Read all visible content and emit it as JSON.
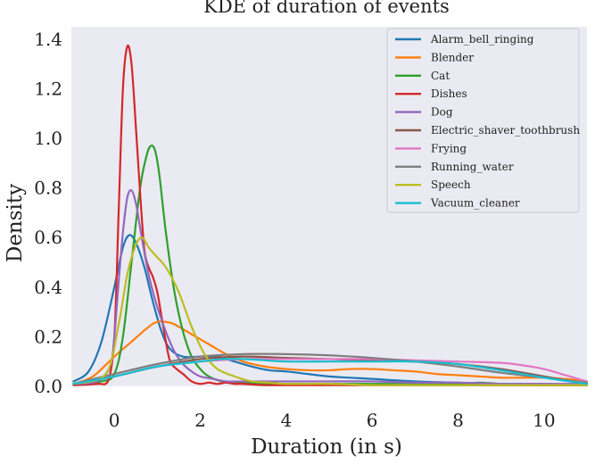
{
  "chart_data": {
    "type": "line",
    "title": "KDE of duration of events",
    "xlabel": "Duration (in s)",
    "ylabel": "Density",
    "xlim": [
      -1,
      11
    ],
    "ylim": [
      0,
      1.45
    ],
    "xticks": [
      0,
      2,
      4,
      6,
      8,
      10
    ],
    "xtick_labels": [
      "0",
      "2",
      "4",
      "6",
      "8",
      "10"
    ],
    "yticks": [
      0.0,
      0.2,
      0.4,
      0.6,
      0.8,
      1.0,
      1.2,
      1.4
    ],
    "ytick_labels": [
      "0.0",
      "0.2",
      "0.4",
      "0.6",
      "0.8",
      "1.0",
      "1.2",
      "1.4"
    ],
    "legend_position": "top-right",
    "background": "#eaeaf2",
    "series": [
      {
        "name": "Alarm_bell_ringing",
        "color": "#1f77b4",
        "x": [
          -0.95,
          -0.6,
          -0.3,
          0.0,
          0.2,
          0.35,
          0.5,
          0.7,
          0.9,
          1.1,
          1.3,
          1.6,
          2.0,
          2.4,
          2.8,
          3.2,
          3.6,
          4.0,
          4.5,
          5.0,
          6.0,
          7.0,
          8.0,
          9.0,
          10.0,
          11.0
        ],
        "y": [
          0.02,
          0.06,
          0.18,
          0.4,
          0.56,
          0.61,
          0.58,
          0.48,
          0.34,
          0.22,
          0.15,
          0.12,
          0.12,
          0.12,
          0.1,
          0.08,
          0.065,
          0.06,
          0.05,
          0.04,
          0.03,
          0.02,
          0.015,
          0.01,
          0.01,
          0.005
        ]
      },
      {
        "name": "Blender",
        "color": "#ff7f0e",
        "x": [
          -0.95,
          -0.5,
          0.0,
          0.4,
          0.8,
          1.0,
          1.2,
          1.4,
          1.8,
          2.2,
          2.6,
          3.0,
          3.5,
          4.0,
          4.5,
          5.0,
          5.5,
          6.0,
          6.5,
          7.0,
          7.5,
          8.0,
          8.5,
          9.0,
          9.5,
          10.0,
          10.5,
          11.0
        ],
        "y": [
          0.01,
          0.04,
          0.12,
          0.18,
          0.24,
          0.26,
          0.26,
          0.25,
          0.21,
          0.17,
          0.13,
          0.1,
          0.08,
          0.07,
          0.065,
          0.065,
          0.07,
          0.07,
          0.065,
          0.06,
          0.05,
          0.045,
          0.04,
          0.035,
          0.035,
          0.035,
          0.03,
          0.02
        ]
      },
      {
        "name": "Cat",
        "color": "#2ca02c",
        "x": [
          -0.95,
          -0.3,
          0.0,
          0.2,
          0.4,
          0.6,
          0.75,
          0.85,
          0.95,
          1.05,
          1.2,
          1.4,
          1.6,
          1.8,
          2.0,
          2.2,
          2.5,
          2.8,
          3.2,
          3.6,
          4.0,
          5.0,
          6.0,
          7.0,
          8.0,
          8.5,
          9.0,
          10.0,
          11.0
        ],
        "y": [
          0.01,
          0.02,
          0.05,
          0.2,
          0.5,
          0.8,
          0.93,
          0.97,
          0.95,
          0.85,
          0.62,
          0.38,
          0.22,
          0.12,
          0.07,
          0.04,
          0.02,
          0.015,
          0.015,
          0.01,
          0.01,
          0.01,
          0.01,
          0.01,
          0.01,
          0.015,
          0.01,
          0.005,
          0.005
        ]
      },
      {
        "name": "Dishes",
        "color": "#d62728",
        "x": [
          -0.95,
          -0.4,
          -0.15,
          0.0,
          0.1,
          0.2,
          0.3,
          0.4,
          0.5,
          0.6,
          0.7,
          0.8,
          0.9,
          1.0,
          1.1,
          1.2,
          1.3,
          1.45,
          1.6,
          1.8,
          2.0,
          2.2,
          2.4,
          2.6,
          2.8,
          3.0,
          3.5,
          4.0,
          5.0,
          6.0,
          7.0,
          8.0,
          9.0,
          10.0,
          11.0
        ],
        "y": [
          0.005,
          0.01,
          0.02,
          0.2,
          0.7,
          1.2,
          1.37,
          1.3,
          1.05,
          0.78,
          0.55,
          0.48,
          0.44,
          0.38,
          0.28,
          0.18,
          0.1,
          0.07,
          0.05,
          0.02,
          0.01,
          0.015,
          0.01,
          0.015,
          0.01,
          0.01,
          0.005,
          0.005,
          0.005,
          0.005,
          0.005,
          0.005,
          0.005,
          0.005,
          0.005
        ]
      },
      {
        "name": "Dog",
        "color": "#9467bd",
        "x": [
          -0.95,
          -0.4,
          -0.1,
          0.0,
          0.1,
          0.2,
          0.3,
          0.4,
          0.5,
          0.6,
          0.7,
          0.8,
          0.9,
          1.0,
          1.2,
          1.4,
          1.6,
          1.8,
          2.0,
          2.3,
          2.6,
          3.0,
          3.5,
          4.0,
          5.0,
          6.0,
          7.0,
          8.0,
          9.0,
          10.0,
          11.0
        ],
        "y": [
          0.01,
          0.02,
          0.08,
          0.2,
          0.42,
          0.62,
          0.76,
          0.79,
          0.74,
          0.64,
          0.54,
          0.45,
          0.38,
          0.32,
          0.22,
          0.14,
          0.09,
          0.06,
          0.04,
          0.03,
          0.02,
          0.02,
          0.02,
          0.02,
          0.02,
          0.02,
          0.015,
          0.015,
          0.01,
          0.01,
          0.01
        ]
      },
      {
        "name": "Electric_shaver_toothbrush",
        "color": "#8c564b",
        "x": [
          -0.95,
          0.0,
          1.0,
          2.0,
          3.0,
          4.0,
          5.0,
          6.0,
          7.0,
          8.0,
          9.0,
          10.0,
          11.0
        ],
        "y": [
          0.01,
          0.04,
          0.08,
          0.11,
          0.12,
          0.115,
          0.11,
          0.105,
          0.1,
          0.09,
          0.07,
          0.04,
          0.01
        ]
      },
      {
        "name": "Frying",
        "color": "#e377c2",
        "x": [
          -0.95,
          0.0,
          1.0,
          2.0,
          3.0,
          4.0,
          5.0,
          6.0,
          7.0,
          8.0,
          9.0,
          9.5,
          10.0,
          10.5,
          11.0
        ],
        "y": [
          0.01,
          0.04,
          0.08,
          0.1,
          0.11,
          0.11,
          0.11,
          0.11,
          0.105,
          0.1,
          0.095,
          0.085,
          0.07,
          0.045,
          0.02
        ]
      },
      {
        "name": "Running_water",
        "color": "#7f7f7f",
        "x": [
          -0.95,
          0.0,
          1.0,
          2.0,
          3.0,
          4.0,
          5.0,
          6.0,
          7.0,
          8.0,
          9.0,
          10.0,
          11.0
        ],
        "y": [
          0.01,
          0.05,
          0.09,
          0.12,
          0.13,
          0.13,
          0.125,
          0.115,
          0.1,
          0.08,
          0.055,
          0.035,
          0.015
        ]
      },
      {
        "name": "Speech",
        "color": "#bcbd22",
        "x": [
          -0.95,
          -0.2,
          0.1,
          0.3,
          0.5,
          0.65,
          0.8,
          1.0,
          1.2,
          1.5,
          1.8,
          2.1,
          2.4,
          2.8,
          3.2,
          3.6,
          4.0,
          5.0,
          6.0,
          7.0,
          8.0,
          9.0,
          10.0,
          11.0
        ],
        "y": [
          0.01,
          0.05,
          0.25,
          0.45,
          0.57,
          0.6,
          0.56,
          0.52,
          0.48,
          0.38,
          0.24,
          0.13,
          0.07,
          0.04,
          0.02,
          0.015,
          0.01,
          0.01,
          0.005,
          0.005,
          0.005,
          0.005,
          0.005,
          0.005
        ]
      },
      {
        "name": "Vacuum_cleaner",
        "color": "#17becf",
        "x": [
          -0.95,
          0.0,
          1.0,
          2.0,
          2.5,
          3.0,
          3.5,
          4.0,
          5.0,
          6.0,
          7.0,
          8.0,
          9.0,
          10.0,
          11.0
        ],
        "y": [
          0.01,
          0.04,
          0.08,
          0.1,
          0.11,
          0.11,
          0.105,
          0.1,
          0.1,
          0.1,
          0.1,
          0.09,
          0.065,
          0.035,
          0.01
        ]
      }
    ]
  }
}
